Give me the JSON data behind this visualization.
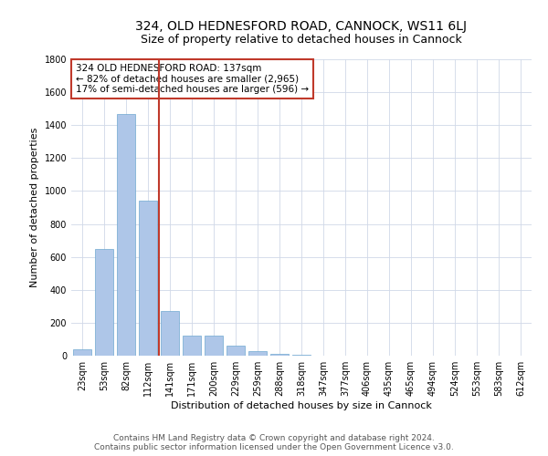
{
  "title": "324, OLD HEDNESFORD ROAD, CANNOCK, WS11 6LJ",
  "subtitle": "Size of property relative to detached houses in Cannock",
  "xlabel": "Distribution of detached houses by size in Cannock",
  "ylabel": "Number of detached properties",
  "categories": [
    "23sqm",
    "53sqm",
    "82sqm",
    "112sqm",
    "141sqm",
    "171sqm",
    "200sqm",
    "229sqm",
    "259sqm",
    "288sqm",
    "318sqm",
    "347sqm",
    "377sqm",
    "406sqm",
    "435sqm",
    "465sqm",
    "494sqm",
    "524sqm",
    "553sqm",
    "583sqm",
    "612sqm"
  ],
  "values": [
    40,
    650,
    1470,
    940,
    270,
    120,
    120,
    60,
    25,
    10,
    5,
    2,
    1,
    0,
    0,
    0,
    0,
    0,
    0,
    0,
    0
  ],
  "bar_color": "#aec6e8",
  "bar_edge_color": "#6fa8d0",
  "vline_color": "#c0392b",
  "annotation_line1": "324 OLD HEDNESFORD ROAD: 137sqm",
  "annotation_line2": "← 82% of detached houses are smaller (2,965)",
  "annotation_line3": "17% of semi-detached houses are larger (596) →",
  "annotation_box_color": "#c0392b",
  "ylim": [
    0,
    1800
  ],
  "yticks": [
    0,
    200,
    400,
    600,
    800,
    1000,
    1200,
    1400,
    1600,
    1800
  ],
  "footer_line1": "Contains HM Land Registry data © Crown copyright and database right 2024.",
  "footer_line2": "Contains public sector information licensed under the Open Government Licence v3.0.",
  "bg_color": "#ffffff",
  "grid_color": "#d0d8e8",
  "title_fontsize": 10,
  "subtitle_fontsize": 9,
  "axis_label_fontsize": 8,
  "tick_fontsize": 7,
  "annotation_fontsize": 7.5,
  "footer_fontsize": 6.5
}
